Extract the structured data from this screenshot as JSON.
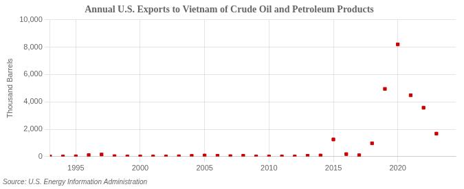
{
  "chart_data": {
    "type": "scatter",
    "title": "Annual U.S. Exports to Vietnam of Crude Oil and Petroleum Products",
    "ylabel": "Thousand Barrels",
    "source": "Source: U.S. Energy Information Administration",
    "x": [
      1993,
      1994,
      1995,
      1996,
      1997,
      1998,
      1999,
      2000,
      2001,
      2002,
      2003,
      2004,
      2005,
      2006,
      2007,
      2008,
      2009,
      2010,
      2011,
      2012,
      2013,
      2014,
      2015,
      2016,
      2017,
      2018,
      2019,
      2020,
      2021,
      2022,
      2023
    ],
    "values": [
      5,
      5,
      18,
      110,
      150,
      30,
      10,
      5,
      5,
      5,
      20,
      50,
      80,
      60,
      30,
      60,
      5,
      5,
      5,
      5,
      60,
      80,
      1250,
      180,
      100,
      970,
      4950,
      8200,
      4480,
      3570,
      1680
    ],
    "color": "#cc0000",
    "marker": "square",
    "xlim": [
      1993,
      2024.5
    ],
    "xticks": [
      1995,
      2000,
      2005,
      2010,
      2015,
      2020
    ],
    "ylim": [
      0,
      10000
    ],
    "yticks": [
      0,
      {
        "value": 2000,
        "label": "2,000"
      },
      {
        "value": 4000,
        "label": "4,000"
      },
      {
        "value": 6000,
        "label": "6,000"
      },
      {
        "value": 8000,
        "label": "8,000"
      },
      {
        "value": 10000,
        "label": "10,000"
      }
    ],
    "grid": true
  }
}
